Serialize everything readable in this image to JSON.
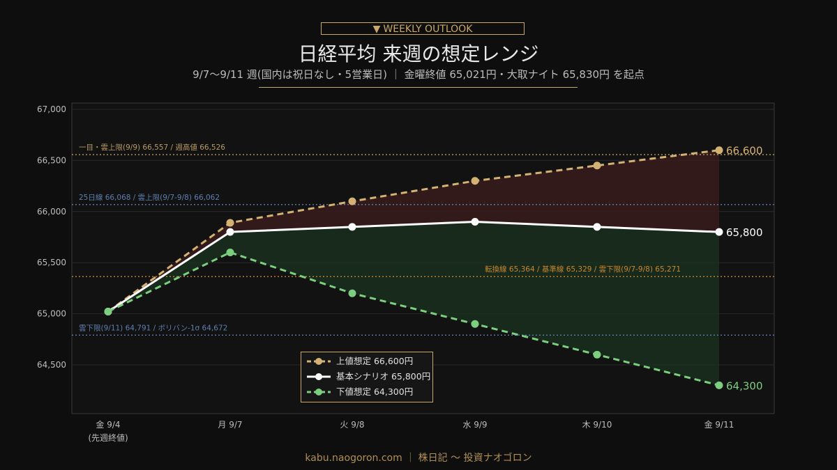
{
  "header": {
    "badge": "WEEKLY OUTLOOK",
    "title": "日経平均 来週の想定レンジ",
    "subtitle": "9/7〜9/11 週(国内は祝日なし・5営業日) ｜ 金曜終値 65,021円・大取ナイト 65,830円 を起点"
  },
  "footer": "kabu.naogoron.com ｜ 株日記 〜 投資ナオゴロン",
  "colors": {
    "upper": "#d4b274",
    "base": "#ffffff",
    "lower": "#7ccf7e",
    "upper_fill": "#3a1c1c",
    "lower_fill": "#1b3320",
    "ref_upper": "#b89a63",
    "ref_blue": "#5f7fb0",
    "ref_orange": "#c8872e",
    "grid": "#2a2a2a"
  },
  "chart_data": {
    "type": "line",
    "categories": [
      "金 9/4",
      "月 9/7",
      "火 9/8",
      "水 9/9",
      "木 9/10",
      "金 9/11"
    ],
    "category_sublabels": [
      "(先週終値)",
      "",
      "",
      "",
      "",
      ""
    ],
    "ylim": [
      64300,
      67000
    ],
    "yticks": [
      64500,
      65000,
      65500,
      66000,
      66500,
      67000
    ],
    "ytick_labels": [
      "64,500",
      "65,000",
      "65,500",
      "66,000",
      "66,500",
      "67,000"
    ],
    "series": [
      {
        "name": "上値想定 66,600円",
        "key": "upper",
        "values": [
          65021,
          65890,
          66100,
          66300,
          66450,
          66600
        ],
        "end_label": "66,600"
      },
      {
        "name": "基本シナリオ 65,800円",
        "key": "base",
        "values": [
          65021,
          65800,
          65850,
          65900,
          65850,
          65800
        ],
        "end_label": "65,800"
      },
      {
        "name": "下値想定 64,300円",
        "key": "lower",
        "values": [
          65021,
          65600,
          65200,
          64900,
          64600,
          64300
        ],
        "end_label": "64,300"
      }
    ],
    "reference_lines": [
      {
        "value": 66557,
        "label": "一目・雲上限(9/9) 66,557 / 週高値 66,526",
        "color_key": "ref_upper",
        "anchor": "left"
      },
      {
        "value": 66068,
        "label": "25日線 66,068 / 雲上限(9/7-9/8) 66,062",
        "color_key": "ref_blue",
        "anchor": "left"
      },
      {
        "value": 65364,
        "label": "転換線 65,364 / 基準線 65,329 / 雲下限(9/7-9/8) 65,271",
        "color_key": "ref_orange",
        "anchor": "right"
      },
      {
        "value": 64791,
        "label": "雲下限(9/11) 64,791 / ボリバン-1σ 64,672",
        "color_key": "ref_blue",
        "anchor": "left"
      }
    ],
    "legend_position": "bottom-center",
    "grid": true
  }
}
